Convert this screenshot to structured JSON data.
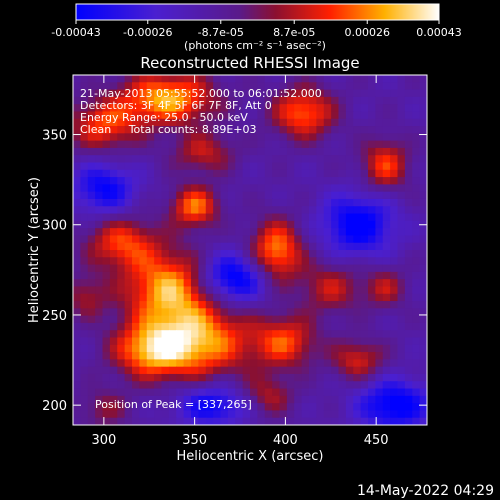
{
  "chart_data": {
    "type": "heatmap",
    "title": "Reconstructed RHESSI Image",
    "xlabel": "Heliocentric X (arcsec)",
    "ylabel": "Heliocentric Y (arcsec)",
    "xlim": [
      283,
      478
    ],
    "ylim": [
      189,
      383
    ],
    "x_ticks": [
      300,
      350,
      400,
      450
    ],
    "y_ticks": [
      200,
      250,
      300,
      350
    ],
    "colorbar": {
      "tick_labels": [
        "-0.00043",
        "-0.00026",
        "-8.7e-05",
        "8.7e-05",
        "0.00026",
        "0.00043"
      ],
      "tick_values": [
        -0.00043,
        -0.00026,
        -8.7e-05,
        8.7e-05,
        0.00026,
        0.00043
      ],
      "range": [
        -0.00043,
        0.00043
      ],
      "colormap": "blue-purple-red-yellow-white"
    },
    "units_label": "(photons cm⁻² s⁻¹ asec⁻²)",
    "annotations": [
      "21-May-2013 05:55:52.000 to 06:01:52.000",
      "Detectors: 3F 4F 5F 6F 7F 8F, Att 0",
      "Energy Range: 25.0 - 50.0 keV",
      "Clean     Total counts: 8.89E+03"
    ],
    "peak_label": "Position of Peak = [337,265]",
    "peak": [
      337,
      265
    ],
    "sources": [
      {
        "x": 335,
        "y": 370,
        "v": 0.00043,
        "rx": 18,
        "ry": 10
      },
      {
        "x": 300,
        "y": 355,
        "v": 0.0003,
        "rx": 14,
        "ry": 10
      },
      {
        "x": 355,
        "y": 340,
        "v": 0.00022,
        "rx": 12,
        "ry": 8
      },
      {
        "x": 350,
        "y": 310,
        "v": 0.00036,
        "rx": 9,
        "ry": 8
      },
      {
        "x": 410,
        "y": 362,
        "v": 0.00035,
        "rx": 12,
        "ry": 10
      },
      {
        "x": 455,
        "y": 333,
        "v": 0.0003,
        "rx": 9,
        "ry": 10
      },
      {
        "x": 395,
        "y": 285,
        "v": 0.0004,
        "rx": 10,
        "ry": 12
      },
      {
        "x": 310,
        "y": 290,
        "v": 0.0003,
        "rx": 14,
        "ry": 10
      },
      {
        "x": 337,
        "y": 265,
        "v": 0.00043,
        "rx": 18,
        "ry": 14
      },
      {
        "x": 350,
        "y": 235,
        "v": 0.00043,
        "rx": 22,
        "ry": 14
      },
      {
        "x": 325,
        "y": 230,
        "v": 0.0003,
        "rx": 14,
        "ry": 10
      },
      {
        "x": 400,
        "y": 235,
        "v": 0.0003,
        "rx": 12,
        "ry": 10
      },
      {
        "x": 425,
        "y": 265,
        "v": 0.00022,
        "rx": 12,
        "ry": 10
      },
      {
        "x": 455,
        "y": 265,
        "v": 0.0002,
        "rx": 8,
        "ry": 8
      },
      {
        "x": 440,
        "y": 225,
        "v": 0.00025,
        "rx": 10,
        "ry": 8
      },
      {
        "x": 290,
        "y": 260,
        "v": 0.00018,
        "rx": 8,
        "ry": 8
      },
      {
        "x": 390,
        "y": 205,
        "v": 0.0002,
        "rx": 10,
        "ry": 8
      },
      {
        "x": 300,
        "y": 198,
        "v": 0.00015,
        "rx": 10,
        "ry": 8
      },
      {
        "x": 370,
        "y": 270,
        "v": -0.0004,
        "rx": 14,
        "ry": 10
      },
      {
        "x": 440,
        "y": 300,
        "v": -0.00035,
        "rx": 14,
        "ry": 12
      },
      {
        "x": 300,
        "y": 320,
        "v": -0.0003,
        "rx": 12,
        "ry": 10
      },
      {
        "x": 460,
        "y": 200,
        "v": -0.00035,
        "rx": 14,
        "ry": 10
      },
      {
        "x": 360,
        "y": 200,
        "v": -0.0003,
        "rx": 14,
        "ry": 8
      }
    ]
  },
  "footer_date": "14-May-2022 04:29"
}
